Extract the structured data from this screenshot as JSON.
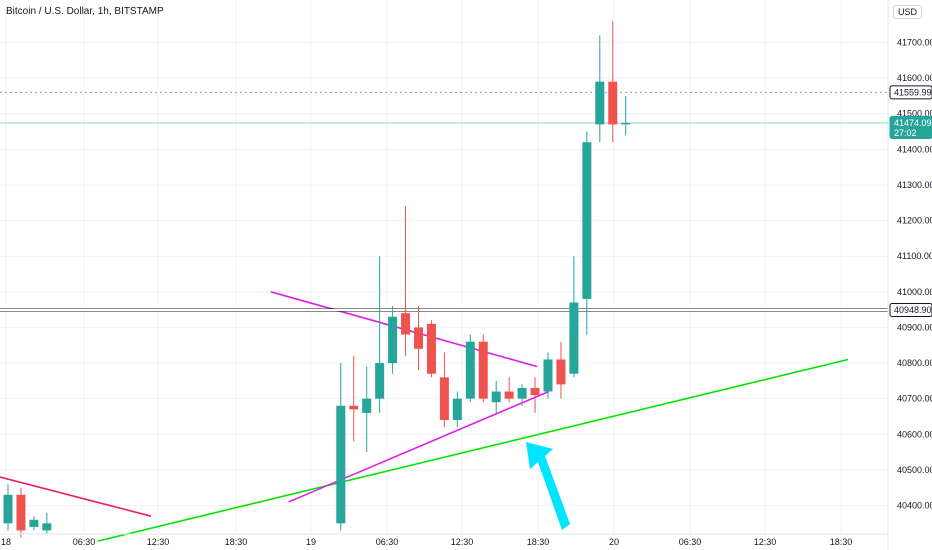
{
  "header": {
    "symbol_title": "Bitcoin / U.S. Dollar, 1h, BITSTAMP",
    "unit": "USD"
  },
  "chart_data": {
    "type": "candlestick",
    "price_ticks": [
      "41700.00",
      "41600.00",
      "41500.00",
      "41400.00",
      "41300.00",
      "41200.00",
      "41100.00",
      "41000.00",
      "40900.00",
      "40800.00",
      "40700.00",
      "40600.00",
      "40500.00",
      "40400.00"
    ],
    "time_ticks": [
      "18",
      "06:30",
      "12:30",
      "18:30",
      "19",
      "06:30",
      "12:30",
      "18:30",
      "20",
      "06:30",
      "12:30",
      "18:30"
    ],
    "ylim": [
      40320,
      41780
    ],
    "colors": {
      "up": "#26a69a",
      "down": "#ef5350",
      "support": "#00e600",
      "triangle": "#e020e8",
      "downtrend": "#e91e63",
      "arrow": "#00e5ff"
    },
    "candles": [
      {
        "o": 40350,
        "h": 40460,
        "c": 40430,
        "l": 40330
      },
      {
        "o": 40430,
        "h": 40450,
        "c": 40330,
        "l": 40310
      },
      {
        "o": 40340,
        "h": 40370,
        "c": 40360,
        "l": 40330
      },
      {
        "o": 40330,
        "h": 40380,
        "c": 40350,
        "l": 40320
      },
      {
        "o": 40350,
        "h": 40800,
        "c": 40680,
        "l": 40330
      },
      {
        "o": 40680,
        "h": 40820,
        "c": 40670,
        "l": 40580
      },
      {
        "o": 40660,
        "h": 40790,
        "c": 40700,
        "l": 40550
      },
      {
        "o": 40700,
        "h": 41100,
        "c": 40800,
        "l": 40660
      },
      {
        "o": 40800,
        "h": 40960,
        "c": 40930,
        "l": 40770
      },
      {
        "o": 40940,
        "h": 41240,
        "c": 40880,
        "l": 40820
      },
      {
        "o": 40900,
        "h": 40960,
        "c": 40840,
        "l": 40780
      },
      {
        "o": 40910,
        "h": 40920,
        "c": 40770,
        "l": 40760
      },
      {
        "o": 40760,
        "h": 40830,
        "c": 40640,
        "l": 40620
      },
      {
        "o": 40640,
        "h": 40720,
        "c": 40700,
        "l": 40620
      },
      {
        "o": 40700,
        "h": 40880,
        "c": 40860,
        "l": 40690
      },
      {
        "o": 40860,
        "h": 40880,
        "c": 40700,
        "l": 40690
      },
      {
        "o": 40690,
        "h": 40750,
        "c": 40720,
        "l": 40660
      },
      {
        "o": 40720,
        "h": 40760,
        "c": 40700,
        "l": 40690
      },
      {
        "o": 40700,
        "h": 40740,
        "c": 40730,
        "l": 40680
      },
      {
        "o": 40730,
        "h": 40760,
        "c": 40710,
        "l": 40660
      },
      {
        "o": 40720,
        "h": 40830,
        "c": 40810,
        "l": 40700
      },
      {
        "o": 40810,
        "h": 40860,
        "c": 40740,
        "l": 40700
      },
      {
        "o": 40770,
        "h": 41100,
        "c": 40970,
        "l": 40760
      },
      {
        "o": 40980,
        "h": 41450,
        "c": 41420,
        "l": 40880
      },
      {
        "o": 41470,
        "h": 41720,
        "c": 41590,
        "l": 41420
      },
      {
        "o": 41590,
        "h": 41760,
        "c": 41470,
        "l": 41420
      },
      {
        "o": 41470,
        "h": 41550,
        "c": 41474,
        "l": 41440
      }
    ],
    "horizontal_lines": [
      {
        "price": 40948.9,
        "label": "40948.90",
        "color": "#ffffff"
      },
      {
        "price": 41559.99,
        "label": "41559.99",
        "style": "dashed"
      }
    ],
    "last_price": {
      "price": 41474.09,
      "label": "41474.09",
      "countdown": "27:02"
    },
    "trendlines": [
      {
        "name": "support",
        "from": [
          0.11,
          40300
        ],
        "to": [
          0.955,
          40810
        ]
      },
      {
        "name": "triangle-upper",
        "from": [
          0.305,
          41000
        ],
        "to": [
          0.605,
          40790
        ]
      },
      {
        "name": "triangle-lower",
        "from": [
          0.325,
          40410
        ],
        "to": [
          0.618,
          40720
        ]
      },
      {
        "name": "downtrend",
        "from": [
          0.0,
          40480
        ],
        "to": [
          0.17,
          40370
        ]
      }
    ]
  }
}
